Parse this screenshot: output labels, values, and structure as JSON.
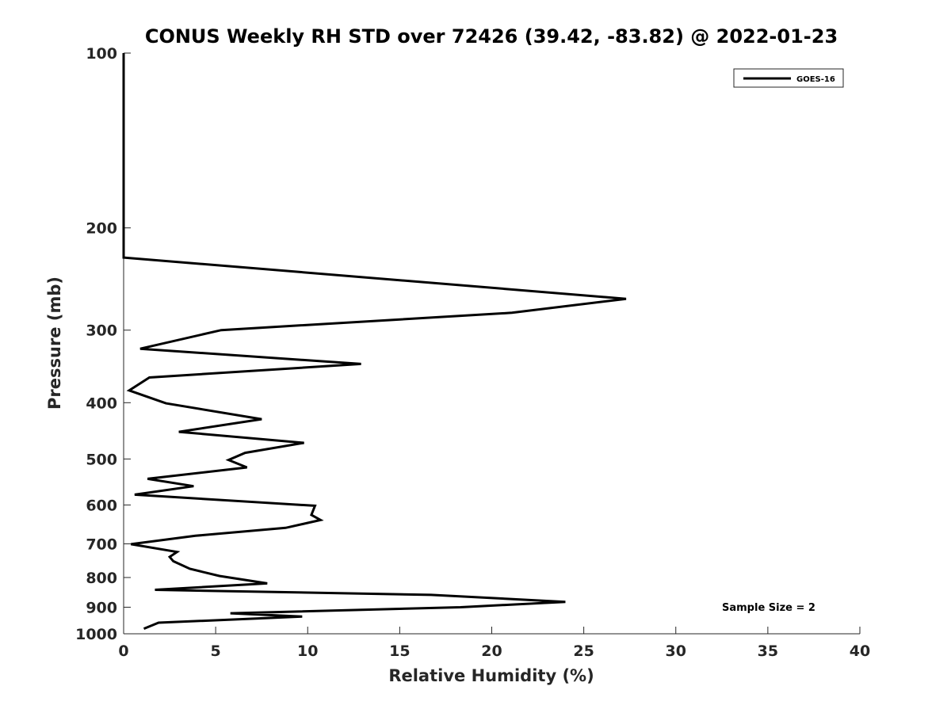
{
  "chart_data": {
    "type": "line",
    "title": "CONUS Weekly RH STD over 72426 (39.42, -83.82) @ 2022-01-23",
    "xlabel": "Relative Humidity (%)",
    "ylabel": "Pressure (mb)",
    "xlim": [
      0,
      40
    ],
    "ylim": [
      100,
      1000
    ],
    "yscale": "log",
    "y_reversed": true,
    "grid": false,
    "legend_position": "top-right",
    "x_ticks": [
      "0",
      "5",
      "10",
      "15",
      "20",
      "25",
      "30",
      "35",
      "40"
    ],
    "y_ticks": [
      "100",
      "200",
      "300",
      "400",
      "500",
      "600",
      "700",
      "800",
      "900",
      "1000"
    ],
    "annotation": "Sample Size = 2",
    "series_color": "#000000",
    "series": [
      {
        "name": "GOES-16",
        "points": [
          [
            0.0,
            100
          ],
          [
            0.0,
            150
          ],
          [
            0.0,
            200
          ],
          [
            0.0,
            225
          ],
          [
            27.3,
            265
          ],
          [
            21.1,
            280
          ],
          [
            5.3,
            300
          ],
          [
            0.9,
            323
          ],
          [
            12.9,
            343
          ],
          [
            1.4,
            362
          ],
          [
            0.3,
            381
          ],
          [
            2.3,
            401
          ],
          [
            7.5,
            427
          ],
          [
            3.0,
            449
          ],
          [
            9.8,
            469
          ],
          [
            6.6,
            488
          ],
          [
            5.7,
            502
          ],
          [
            6.7,
            517
          ],
          [
            1.3,
            541
          ],
          [
            3.8,
            557
          ],
          [
            0.6,
            576
          ],
          [
            10.4,
            602
          ],
          [
            10.2,
            624
          ],
          [
            10.7,
            637
          ],
          [
            8.8,
            657
          ],
          [
            3.9,
            678
          ],
          [
            0.4,
            701
          ],
          [
            2.9,
            723
          ],
          [
            2.5,
            737
          ],
          [
            2.7,
            750
          ],
          [
            3.6,
            773
          ],
          [
            5.2,
            795
          ],
          [
            7.8,
            819
          ],
          [
            1.7,
            840
          ],
          [
            16.7,
            857
          ],
          [
            24.0,
            881
          ],
          [
            18.3,
            900
          ],
          [
            5.8,
            922
          ],
          [
            9.7,
            934
          ],
          [
            1.9,
            957
          ],
          [
            1.1,
            980
          ]
        ]
      }
    ]
  }
}
